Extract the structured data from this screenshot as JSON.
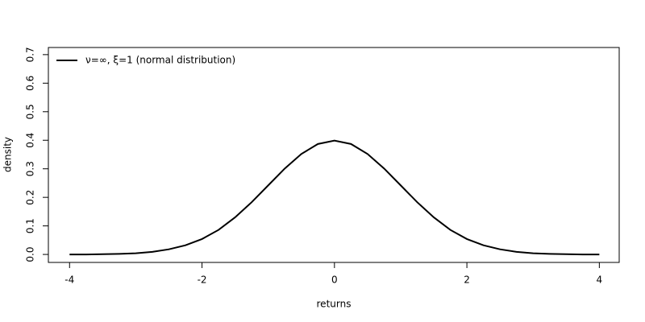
{
  "chart_data": {
    "type": "line",
    "xlabel": "returns",
    "ylabel": "density",
    "x": [
      -4,
      -3.75,
      -3.5,
      -3.25,
      -3,
      -2.75,
      -2.5,
      -2.25,
      -2,
      -1.75,
      -1.5,
      -1.25,
      -1,
      -0.75,
      -0.5,
      -0.25,
      0,
      0.25,
      0.5,
      0.75,
      1,
      1.25,
      1.5,
      1.75,
      2,
      2.25,
      2.5,
      2.75,
      3,
      3.25,
      3.5,
      3.75,
      4
    ],
    "series": [
      {
        "name": "ν=∞, ξ=1 (normal distribution)",
        "color": "#000000",
        "values": [
          0.0,
          0.0,
          0.001,
          0.002,
          0.004,
          0.009,
          0.018,
          0.032,
          0.054,
          0.086,
          0.13,
          0.183,
          0.242,
          0.301,
          0.352,
          0.387,
          0.399,
          0.387,
          0.352,
          0.301,
          0.242,
          0.183,
          0.13,
          0.086,
          0.054,
          0.032,
          0.018,
          0.009,
          0.004,
          0.002,
          0.001,
          0.0,
          0.0
        ]
      }
    ],
    "xlim": [
      -4.32,
      4.3
    ],
    "ylim": [
      -0.028,
      0.725
    ],
    "xticks": [
      -4,
      -2,
      0,
      2,
      4
    ],
    "yticks": [
      {
        "value": 0,
        "label": "0.0"
      },
      0.1,
      0.2,
      0.3,
      0.4,
      0.5,
      0.6,
      0.7
    ],
    "legend": "topleft"
  }
}
